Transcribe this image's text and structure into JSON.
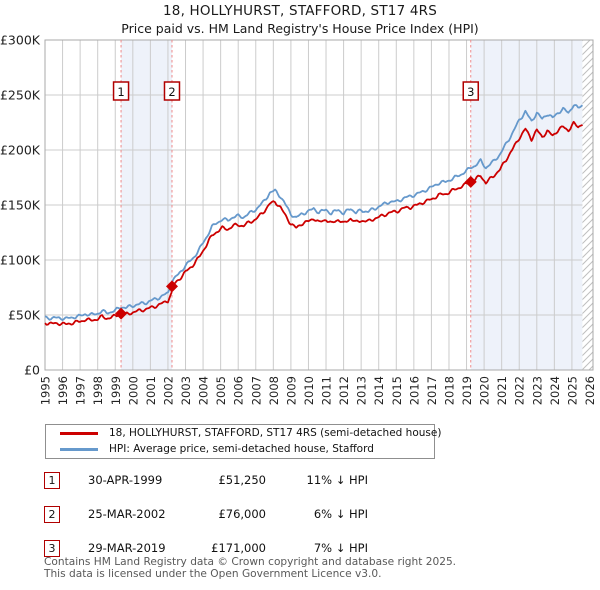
{
  "title": "18, HOLLYHURST, STAFFORD, ST17 4RS",
  "subtitle": "Price paid vs. HM Land Registry's House Price Index (HPI)",
  "colors": {
    "property_line": "#cc0000",
    "hpi_line": "#6699cc",
    "sale_dashed_line": "#ef8a8a",
    "sale_shading": "#eef2fa",
    "grid": "#cccccc",
    "plot_border": "#aaaaaa",
    "hatch": "#bfbfbf",
    "marker_box_border": "#b00000"
  },
  "chart_data": {
    "type": "line",
    "title": "18, HOLLYHURST, STAFFORD, ST17 4RS",
    "subtitle": "Price paid vs. HM Land Registry's House Price Index (HPI)",
    "xlabel": "",
    "ylabel": "",
    "y_unit": "GBP thousands",
    "ylim": [
      0,
      300
    ],
    "x_range": [
      1995,
      2026.2
    ],
    "grid": true,
    "legend_position": "below",
    "y_ticks": [
      [
        0,
        "£0"
      ],
      [
        50,
        "£50K"
      ],
      [
        100,
        "£100K"
      ],
      [
        150,
        "£150K"
      ],
      [
        200,
        "£200K"
      ],
      [
        250,
        "£250K"
      ],
      [
        300,
        "£300K"
      ]
    ],
    "x_ticks": [
      "1995",
      "1996",
      "1997",
      "1998",
      "1999",
      "2000",
      "2001",
      "2002",
      "2003",
      "2004",
      "2005",
      "2006",
      "2007",
      "2008",
      "2009",
      "2010",
      "2011",
      "2012",
      "2013",
      "2014",
      "2015",
      "2016",
      "2017",
      "2018",
      "2019",
      "2020",
      "2021",
      "2022",
      "2023",
      "2024",
      "2025",
      "2026"
    ],
    "shaded_spans": [
      [
        1999.33,
        2002.23
      ],
      [
        2019.24,
        2025.6
      ]
    ],
    "hatch_span": [
      2025.6,
      2026.2
    ],
    "sales": [
      {
        "num": "1",
        "year": 1999.33,
        "price_k": 51.25
      },
      {
        "num": "2",
        "year": 2002.23,
        "price_k": 76
      },
      {
        "num": "3",
        "year": 2019.24,
        "price_k": 171
      }
    ],
    "series": [
      {
        "name": "18, HOLLYHURST, STAFFORD, ST17 4RS (semi-detached house)",
        "color": "#cc0000",
        "points": [
          [
            1995,
            43
          ],
          [
            1995.4,
            42
          ],
          [
            1995.8,
            42.5
          ],
          [
            1996.2,
            41.5
          ],
          [
            1996.6,
            43
          ],
          [
            1997,
            44
          ],
          [
            1997.3,
            46
          ],
          [
            1997.6,
            45
          ],
          [
            1998,
            46.5
          ],
          [
            1998.25,
            48.5
          ],
          [
            1998.5,
            47
          ],
          [
            1998.8,
            48
          ],
          [
            1999,
            49
          ],
          [
            1999.33,
            51.25
          ],
          [
            1999.6,
            50.5
          ],
          [
            2000,
            52.5
          ],
          [
            2000.4,
            54
          ],
          [
            2000.8,
            55.5
          ],
          [
            2001.2,
            57.5
          ],
          [
            2001.6,
            60
          ],
          [
            2002,
            63
          ],
          [
            2002.2,
            70
          ],
          [
            2002.23,
            76
          ],
          [
            2002.6,
            82
          ],
          [
            2003,
            89
          ],
          [
            2003.4,
            95
          ],
          [
            2003.8,
            103
          ],
          [
            2004.2,
            114
          ],
          [
            2004.5,
            122
          ],
          [
            2004.8,
            126
          ],
          [
            2005.1,
            129
          ],
          [
            2005.4,
            128
          ],
          [
            2005.7,
            131
          ],
          [
            2006,
            132
          ],
          [
            2006.3,
            131
          ],
          [
            2006.6,
            134
          ],
          [
            2007,
            137
          ],
          [
            2007.4,
            143
          ],
          [
            2007.8,
            151
          ],
          [
            2008.1,
            153
          ],
          [
            2008.4,
            148
          ],
          [
            2008.7,
            140
          ],
          [
            2009,
            133
          ],
          [
            2009.3,
            129
          ],
          [
            2009.6,
            133
          ],
          [
            2010,
            135
          ],
          [
            2010.3,
            138
          ],
          [
            2010.6,
            134
          ],
          [
            2011,
            137
          ],
          [
            2011.3,
            133
          ],
          [
            2011.7,
            137
          ],
          [
            2012,
            133
          ],
          [
            2012.4,
            138
          ],
          [
            2012.7,
            134
          ],
          [
            2013,
            136
          ],
          [
            2013.4,
            135
          ],
          [
            2013.8,
            138
          ],
          [
            2014.2,
            140
          ],
          [
            2014.6,
            143
          ],
          [
            2015,
            144
          ],
          [
            2015.4,
            147
          ],
          [
            2015.8,
            148
          ],
          [
            2016.2,
            150
          ],
          [
            2016.6,
            153
          ],
          [
            2017,
            155
          ],
          [
            2017.4,
            159
          ],
          [
            2017.8,
            160
          ],
          [
            2018.2,
            163
          ],
          [
            2018.6,
            166
          ],
          [
            2019,
            169
          ],
          [
            2019.24,
            171
          ],
          [
            2019.5,
            173
          ],
          [
            2019.8,
            177
          ],
          [
            2020.1,
            170
          ],
          [
            2020.5,
            176
          ],
          [
            2020.9,
            182
          ],
          [
            2021.2,
            190
          ],
          [
            2021.6,
            200
          ],
          [
            2022,
            211
          ],
          [
            2022.35,
            219
          ],
          [
            2022.7,
            210
          ],
          [
            2023,
            218
          ],
          [
            2023.3,
            212
          ],
          [
            2023.6,
            217
          ],
          [
            2023.9,
            213
          ],
          [
            2024.2,
            218
          ],
          [
            2024.5,
            221
          ],
          [
            2024.8,
            218
          ],
          [
            2025.1,
            224
          ],
          [
            2025.35,
            221
          ],
          [
            2025.6,
            224
          ]
        ]
      },
      {
        "name": "HPI: Average price, semi-detached house, Stafford",
        "color": "#6699cc",
        "points": [
          [
            1995,
            48
          ],
          [
            1995.4,
            47
          ],
          [
            1995.8,
            47.5
          ],
          [
            1996.2,
            46.5
          ],
          [
            1996.6,
            48
          ],
          [
            1997,
            49
          ],
          [
            1997.3,
            51
          ],
          [
            1997.6,
            50
          ],
          [
            1998,
            51.5
          ],
          [
            1998.25,
            53.5
          ],
          [
            1998.5,
            52
          ],
          [
            1998.8,
            53
          ],
          [
            1999,
            54
          ],
          [
            1999.33,
            57.5
          ],
          [
            1999.6,
            56.5
          ],
          [
            2000,
            58.5
          ],
          [
            2000.4,
            60
          ],
          [
            2000.8,
            61.5
          ],
          [
            2001.2,
            64
          ],
          [
            2001.6,
            66.5
          ],
          [
            2002,
            70
          ],
          [
            2002.23,
            81
          ],
          [
            2002.6,
            87
          ],
          [
            2003,
            95
          ],
          [
            2003.4,
            101
          ],
          [
            2003.8,
            110
          ],
          [
            2004.2,
            121
          ],
          [
            2004.5,
            130
          ],
          [
            2004.8,
            134
          ],
          [
            2005.1,
            137
          ],
          [
            2005.4,
            136
          ],
          [
            2005.7,
            139
          ],
          [
            2006,
            140
          ],
          [
            2006.3,
            139
          ],
          [
            2006.6,
            142
          ],
          [
            2007,
            146
          ],
          [
            2007.4,
            152
          ],
          [
            2007.8,
            161
          ],
          [
            2008.1,
            163
          ],
          [
            2008.4,
            158
          ],
          [
            2008.7,
            150
          ],
          [
            2009,
            142
          ],
          [
            2009.3,
            138
          ],
          [
            2009.6,
            142
          ],
          [
            2010,
            144
          ],
          [
            2010.3,
            147
          ],
          [
            2010.6,
            143
          ],
          [
            2011,
            146
          ],
          [
            2011.3,
            142
          ],
          [
            2011.7,
            146
          ],
          [
            2012,
            142
          ],
          [
            2012.4,
            147
          ],
          [
            2012.7,
            143
          ],
          [
            2013,
            145
          ],
          [
            2013.4,
            144
          ],
          [
            2013.8,
            147
          ],
          [
            2014.2,
            150
          ],
          [
            2014.6,
            153
          ],
          [
            2015,
            153
          ],
          [
            2015.4,
            156
          ],
          [
            2015.8,
            158
          ],
          [
            2016.2,
            160
          ],
          [
            2016.6,
            163
          ],
          [
            2017,
            166
          ],
          [
            2017.4,
            170
          ],
          [
            2017.8,
            171
          ],
          [
            2018.2,
            174
          ],
          [
            2018.6,
            177
          ],
          [
            2019,
            181
          ],
          [
            2019.24,
            184
          ],
          [
            2019.5,
            186
          ],
          [
            2019.8,
            190
          ],
          [
            2020.1,
            184
          ],
          [
            2020.5,
            189
          ],
          [
            2020.9,
            196
          ],
          [
            2021.2,
            204
          ],
          [
            2021.6,
            215
          ],
          [
            2022,
            227
          ],
          [
            2022.35,
            235
          ],
          [
            2022.7,
            226
          ],
          [
            2023,
            234
          ],
          [
            2023.3,
            228
          ],
          [
            2023.6,
            233
          ],
          [
            2023.9,
            229
          ],
          [
            2024.2,
            234
          ],
          [
            2024.5,
            237
          ],
          [
            2024.8,
            234
          ],
          [
            2025.1,
            241
          ],
          [
            2025.35,
            238
          ],
          [
            2025.6,
            241
          ]
        ]
      }
    ]
  },
  "legend": {
    "items": [
      {
        "label": "18, HOLLYHURST, STAFFORD, ST17 4RS (semi-detached house)",
        "color": "#cc0000"
      },
      {
        "label": "HPI: Average price, semi-detached house, Stafford",
        "color": "#6699cc"
      }
    ]
  },
  "transactions": [
    {
      "num": "1",
      "date": "30-APR-1999",
      "price": "£51,250",
      "vs_hpi": "11% ↓ HPI"
    },
    {
      "num": "2",
      "date": "25-MAR-2002",
      "price": "£76,000",
      "vs_hpi": "6% ↓ HPI"
    },
    {
      "num": "3",
      "date": "29-MAR-2019",
      "price": "£171,000",
      "vs_hpi": "7% ↓ HPI"
    }
  ],
  "footer": {
    "line1": "Contains HM Land Registry data © Crown copyright and database right 2025.",
    "line2": "This data is licensed under the Open Government Licence v3.0."
  }
}
